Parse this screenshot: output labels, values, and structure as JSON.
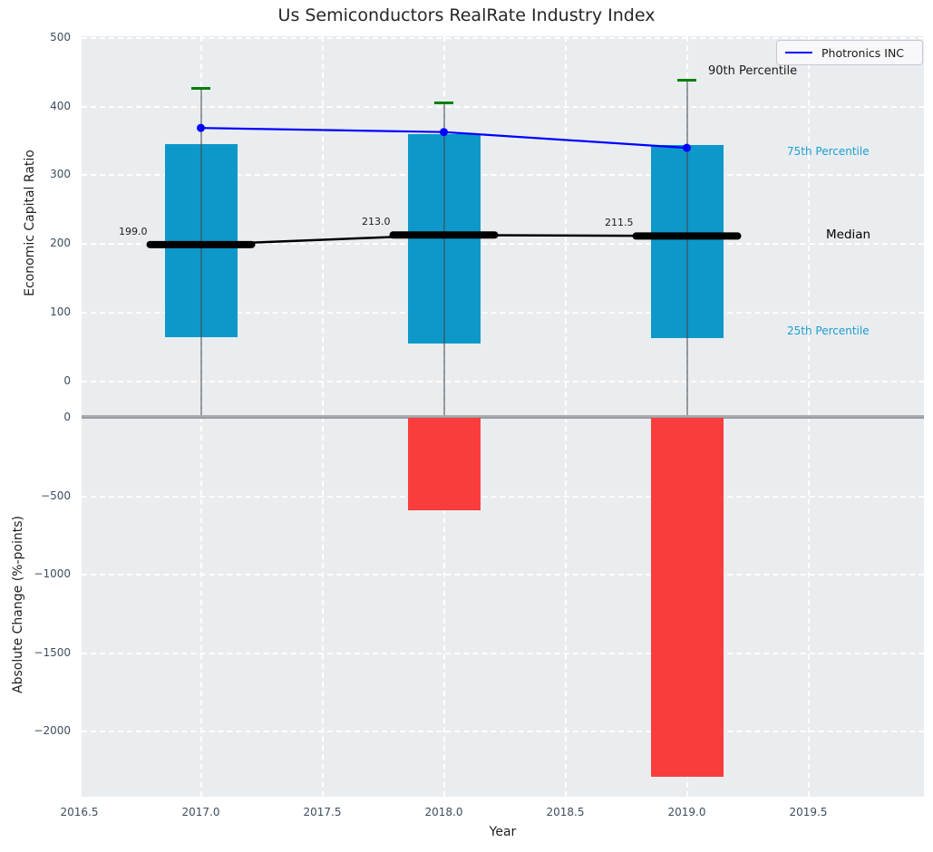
{
  "title": "Us Semiconductors RealRate Industry Index",
  "legend": {
    "label": "Photronics INC"
  },
  "side_labels": {
    "p90": "90th Percentile",
    "p75": "75th Percentile",
    "median": "Median",
    "p25": "25th Percentile"
  },
  "x_axis": {
    "label": "Year",
    "tick_labels": [
      "2016.5",
      "2017.0",
      "2017.5",
      "2018.0",
      "2018.5",
      "2019.0",
      "2019.5"
    ],
    "tick_values": [
      2016.5,
      2017,
      2017.5,
      2018,
      2018.5,
      2019,
      2019.5
    ],
    "xlim": [
      2016.45,
      2019.97
    ]
  },
  "chart_data": [
    {
      "type": "box-percentile-with-line",
      "title": "Us Semiconductors RealRate Industry Index",
      "ylabel": "Economic Capital Ratio",
      "xlabel": "Year",
      "x": [
        2017,
        2018,
        2019
      ],
      "series": [
        {
          "name": "90th Percentile",
          "values": [
            427,
            406,
            439
          ]
        },
        {
          "name": "75th Percentile",
          "values": [
            346,
            360,
            344
          ]
        },
        {
          "name": "Median",
          "values": [
            199.0,
            213.0,
            211.5
          ]
        },
        {
          "name": "25th Percentile",
          "values": [
            64,
            55,
            63
          ]
        },
        {
          "name": "Photronics INC",
          "values": [
            369,
            363,
            340
          ]
        }
      ],
      "median_value_labels": [
        "199.0",
        "213.0",
        "211.5"
      ],
      "ytick_labels": [
        "0",
        "100",
        "200",
        "300",
        "400",
        "500"
      ],
      "ytick_values": [
        0,
        100,
        200,
        300,
        400,
        500
      ],
      "ylim": [
        -53,
        503
      ],
      "grid": true,
      "legend_position": "upper right"
    },
    {
      "type": "bar",
      "ylabel": "Absolute Change (%-points)",
      "x": [
        2018,
        2019
      ],
      "values": [
        -590,
        -2290
      ],
      "ytick_labels": [
        "0",
        "−500",
        "−1000",
        "−1500",
        "−2000"
      ],
      "ytick_values": [
        0,
        -500,
        -1000,
        -1500,
        -2000
      ],
      "ylim": [
        -2420,
        12
      ],
      "grid": true
    }
  ],
  "colors": {
    "box": "#0d98c9",
    "negative_bar": "#f93d3d",
    "company_line": "#0000ff",
    "whisker_cap": "#008000",
    "whisker": "rgba(70,75,80,0.55)",
    "median_line": "#000000",
    "percentile_text": "#1e9cd0",
    "dark_text": "#1a1a1a",
    "tick_text": "#3e4d5f",
    "plot_bg": "#e9edf0",
    "grid": "#ffffff",
    "zero_line": "#9a9ea2"
  }
}
